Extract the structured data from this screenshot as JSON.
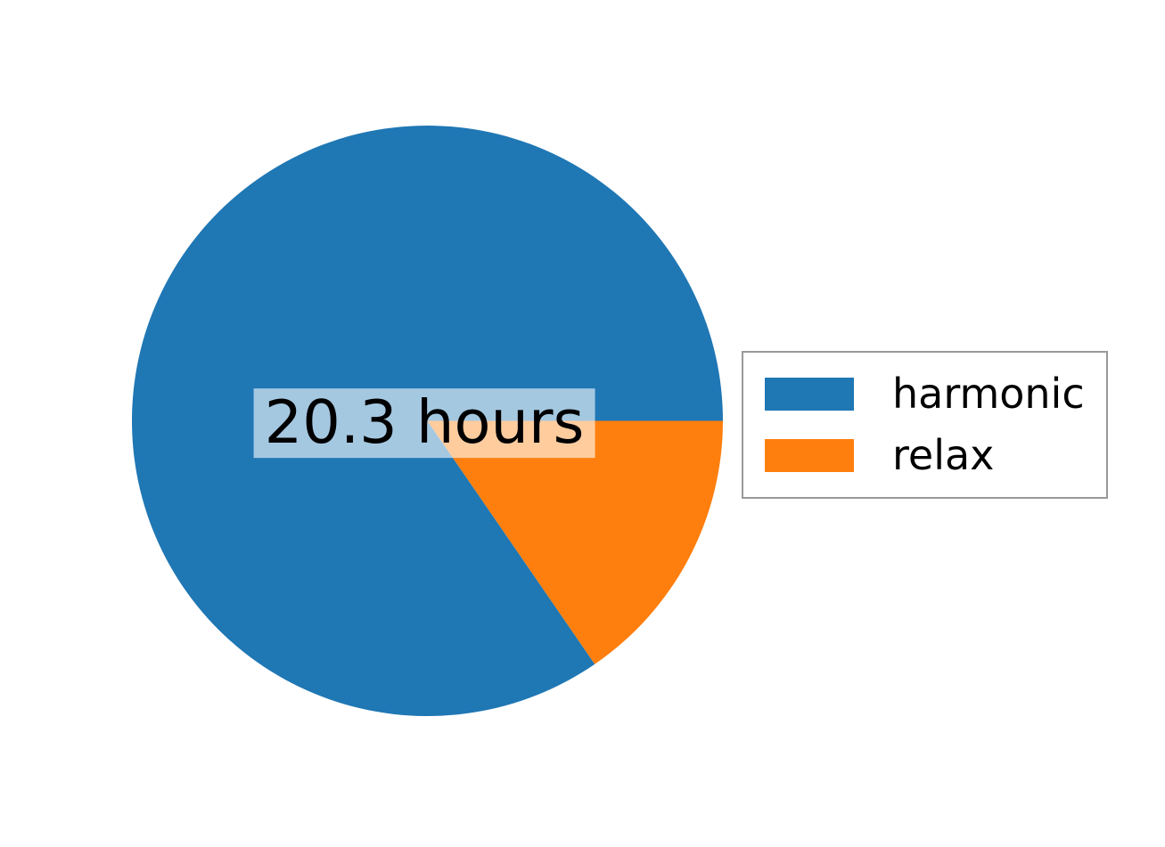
{
  "chart_data": {
    "type": "pie",
    "labels": [
      "harmonic",
      "relax"
    ],
    "values": [
      20.3,
      3.7
    ],
    "value_unit": "hours",
    "colors": [
      "#1f77b4",
      "#ff7f0e"
    ],
    "start_angle_deg": 0,
    "direction": "counterclockwise",
    "center_label": "20.3 hours",
    "center_label_bg": "rgba(255, 255, 255, 0.6)",
    "legend": {
      "position": "center right",
      "border_color": "#999999",
      "entries": [
        {
          "label": "harmonic",
          "color": "#1f77b4"
        },
        {
          "label": "relax",
          "color": "#ff7f0e"
        }
      ]
    },
    "title": "",
    "xlabel": "",
    "ylabel": ""
  }
}
